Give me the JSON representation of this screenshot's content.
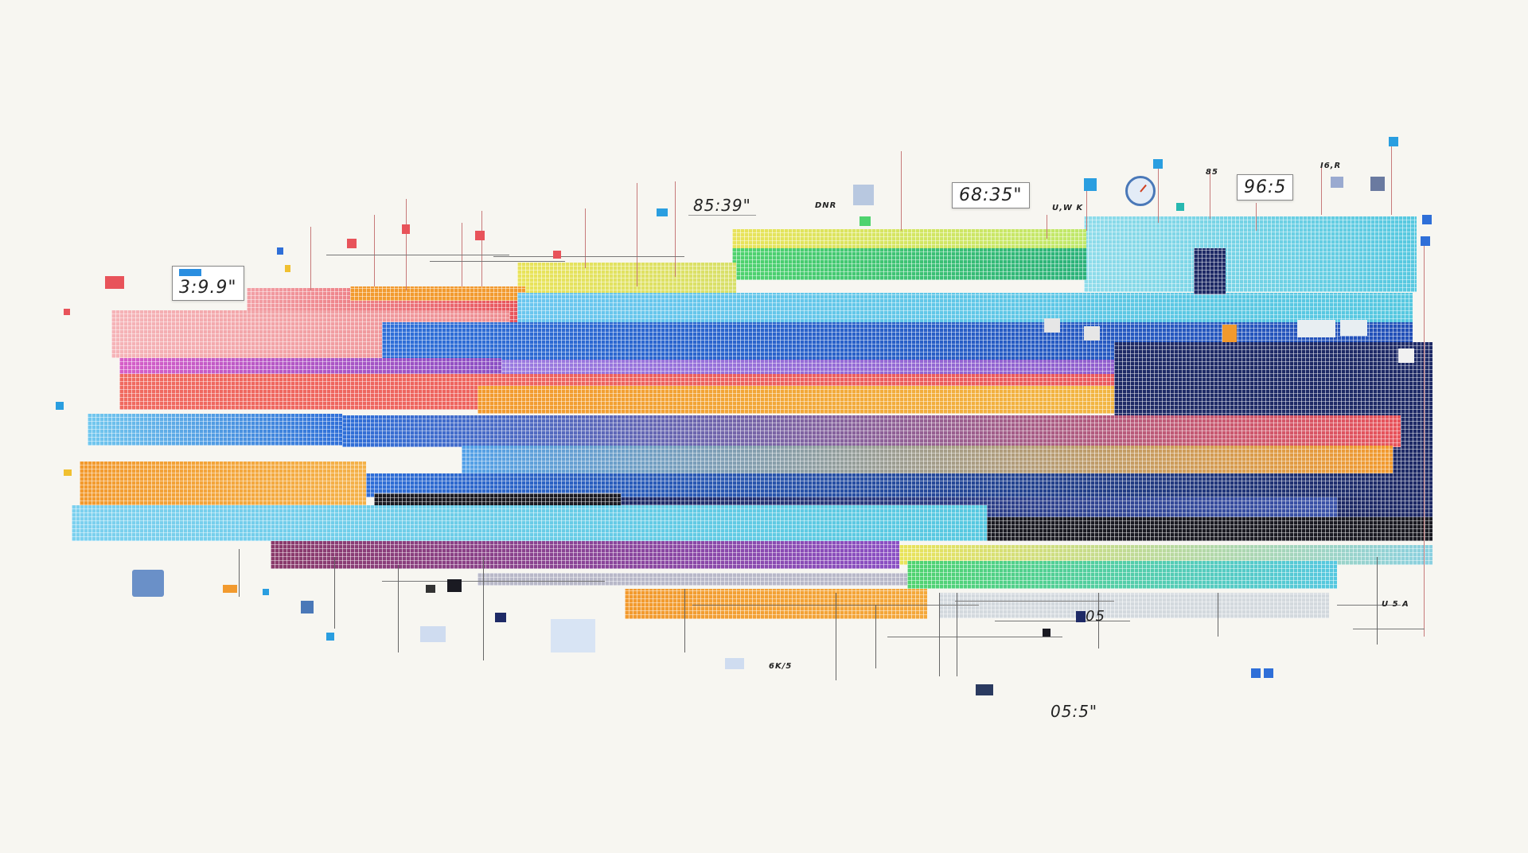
{
  "labels": {
    "timer_left": "3:9.9\"",
    "timer_top_mid": "85:39\"",
    "tag_dnr": "DNR",
    "timer_top_right": "68:35\"",
    "tag_uwk": "U,W K",
    "tag_85": "85",
    "timer_far_right": "96:5",
    "tag_i6r": "I6,R",
    "tag_05": "05",
    "tag_6k5": "6K/5",
    "tag_u5a": "U 5 A",
    "timer_bottom": "05:5\""
  },
  "icons": [
    "clock-icon",
    "window-thumbnail-icon",
    "cursor-icon",
    "image-icon",
    "node-square-icon"
  ],
  "palette": {
    "background": "#f7f6f1",
    "red": "#e8535a",
    "orange": "#f29a2e",
    "yellow": "#e9e35a",
    "green": "#4fd36e",
    "cyan": "#56c8e0",
    "blue": "#2f6fd8",
    "navy": "#1e2a66",
    "purple": "#8a4fc4",
    "magenta": "#d65ec8",
    "dark": "#1a1a22"
  }
}
